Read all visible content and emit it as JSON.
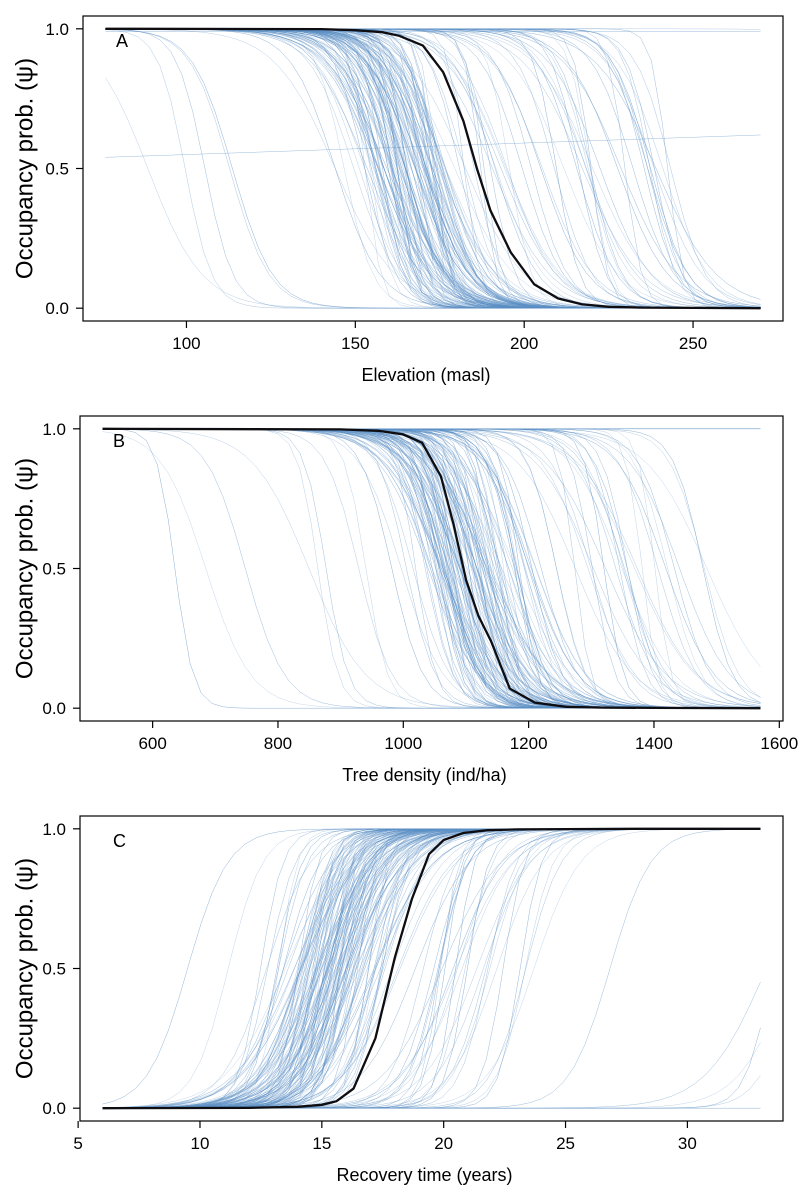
{
  "colors": {
    "samples": "#5b8fc4",
    "mean": "#0d0d12",
    "axis": "#000000"
  },
  "chart_data": [
    {
      "type": "line",
      "panel_label": "A",
      "xlabel": "Elevation (masl)",
      "ylabel": "Occupancy prob. (ψ)",
      "xlim": [
        76,
        270
      ],
      "ylim": [
        0,
        1
      ],
      "xticks": [
        100,
        150,
        200,
        250
      ],
      "xtick_labels": [
        "100",
        "150",
        "200",
        "250"
      ],
      "yticks": [
        0,
        0.5,
        1
      ],
      "ytick_labels": [
        "0.0",
        "0.5",
        "1.0"
      ],
      "direction": "decreasing",
      "mean_curve": {
        "x": [
          76,
          140,
          150,
          158,
          163,
          170,
          176,
          182,
          186,
          190,
          196,
          203,
          210,
          217,
          225,
          235,
          250,
          270
        ],
        "y": [
          1.0,
          0.999,
          0.995,
          0.988,
          0.975,
          0.94,
          0.845,
          0.67,
          0.5,
          0.35,
          0.2,
          0.085,
          0.035,
          0.014,
          0.005,
          0.002,
          0.001,
          0.0
        ]
      },
      "sample_curves": {
        "description_midpoints": [
          155,
          225
        ],
        "flat_lines_y": [
          0.99,
          0.54
        ],
        "count": 180
      }
    },
    {
      "type": "line",
      "panel_label": "B",
      "xlabel": "Tree density (ind/ha)",
      "ylabel": "Occupancy prob. (ψ)",
      "xlim": [
        520,
        1570
      ],
      "ylim": [
        0,
        1
      ],
      "xticks": [
        600,
        800,
        1000,
        1200,
        1400,
        1600
      ],
      "xtick_labels": [
        "600",
        "800",
        "1000",
        "1200",
        "1400",
        "1600"
      ],
      "yticks": [
        0,
        0.5,
        1
      ],
      "ytick_labels": [
        "0.0",
        "0.5",
        "1.0"
      ],
      "direction": "decreasing",
      "mean_curve": {
        "x": [
          520,
          900,
          960,
          1000,
          1030,
          1060,
          1080,
          1100,
          1120,
          1140,
          1170,
          1210,
          1260,
          1320,
          1400,
          1570
        ],
        "y": [
          1.0,
          0.998,
          0.993,
          0.98,
          0.95,
          0.83,
          0.66,
          0.46,
          0.33,
          0.24,
          0.07,
          0.02,
          0.005,
          0.002,
          0.001,
          0.0
        ]
      },
      "sample_curves": {
        "description_midpoints": [
          1050,
          1400
        ],
        "count": 180
      }
    },
    {
      "type": "line",
      "panel_label": "C",
      "xlabel": "Recovery time (years)",
      "ylabel": "Occupancy prob. (ψ)",
      "xlim": [
        6,
        33
      ],
      "ylim": [
        0,
        1
      ],
      "xticks": [
        5,
        10,
        15,
        20,
        25,
        30
      ],
      "xtick_labels": [
        "5",
        "10",
        "15",
        "20",
        "25",
        "30"
      ],
      "yticks": [
        0,
        0.5,
        1
      ],
      "ytick_labels": [
        "0.0",
        "0.5",
        "1.0"
      ],
      "direction": "increasing",
      "mean_curve": {
        "x": [
          6,
          12,
          14,
          15,
          15.6,
          16.3,
          17.2,
          18,
          18.7,
          19.4,
          20,
          20.8,
          21.8,
          23,
          25,
          28,
          33
        ],
        "y": [
          0.0,
          0.001,
          0.005,
          0.012,
          0.025,
          0.07,
          0.25,
          0.54,
          0.75,
          0.91,
          0.96,
          0.985,
          0.995,
          0.998,
          0.999,
          1.0,
          1.0
        ]
      },
      "sample_curves": {
        "description_midpoints": [
          14,
          22
        ],
        "count": 180
      }
    }
  ]
}
